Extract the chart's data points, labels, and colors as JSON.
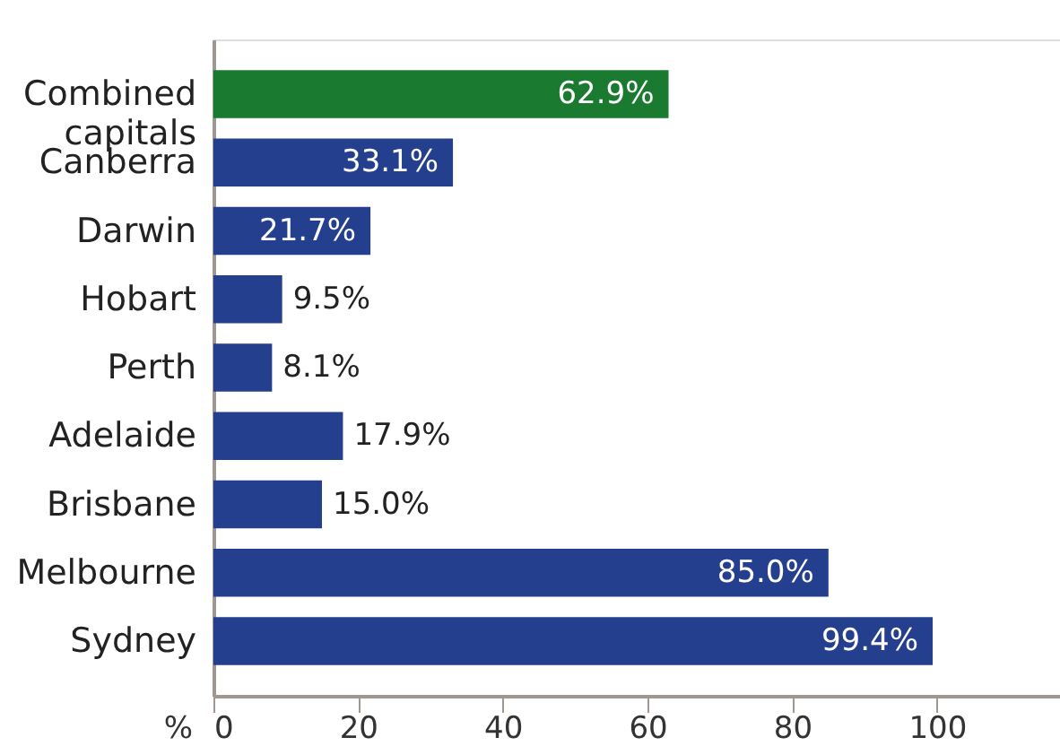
{
  "chart_data": {
    "type": "bar",
    "orientation": "horizontal",
    "xlabel": "%",
    "categories": [
      "Combined capitals",
      "Canberra",
      "Darwin",
      "Hobart",
      "Perth",
      "Adelaide",
      "Brisbane",
      "Melbourne",
      "Sydney"
    ],
    "values": [
      62.9,
      33.1,
      21.7,
      9.5,
      8.1,
      17.9,
      15.0,
      85.0,
      99.4
    ],
    "colors": [
      "#1a7a30",
      "#253f8f",
      "#253f8f",
      "#253f8f",
      "#253f8f",
      "#253f8f",
      "#253f8f",
      "#253f8f",
      "#253f8f"
    ],
    "value_labels": [
      "62.9%",
      "33.1%",
      "21.7%",
      "9.5%",
      "8.1%",
      "17.9%",
      "15.0%",
      "85.0%",
      "99.4%"
    ],
    "xlim": [
      0,
      117
    ],
    "xticks": [
      0,
      20,
      40,
      60,
      80,
      100
    ],
    "grid": false
  }
}
